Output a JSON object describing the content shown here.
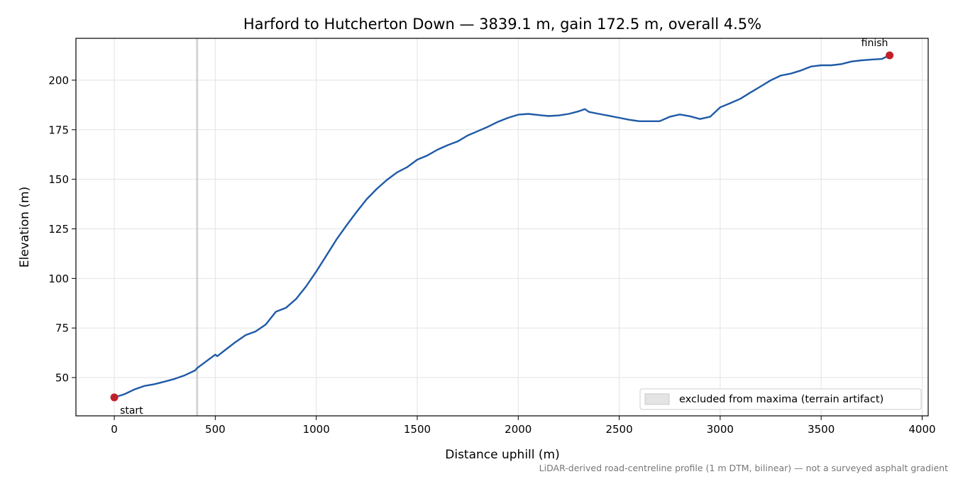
{
  "chart_data": {
    "type": "line",
    "title": "Harford to Hutcherton Down — 3839.1 m, gain 172.5 m, overall 4.5%",
    "xlabel": "Distance uphill (m)",
    "ylabel": "Elevation (m)",
    "xlim": [
      -190,
      4030
    ],
    "ylim": [
      30.7,
      221.1
    ],
    "xticks": [
      0,
      500,
      1000,
      1500,
      2000,
      2500,
      3000,
      3500,
      4000
    ],
    "yticks": [
      50,
      75,
      100,
      125,
      150,
      175,
      200
    ],
    "grid": true,
    "series": [
      {
        "color": "#1f5aa6",
        "x": [
          0,
          50,
          100,
          150,
          200,
          250,
          300,
          350,
          400,
          410,
          450,
          500,
          510,
          550,
          600,
          650,
          700,
          750,
          800,
          850,
          900,
          950,
          1000,
          1050,
          1100,
          1150,
          1200,
          1250,
          1300,
          1350,
          1400,
          1450,
          1500,
          1550,
          1600,
          1650,
          1700,
          1750,
          1800,
          1850,
          1900,
          1950,
          2000,
          2050,
          2100,
          2150,
          2200,
          2250,
          2300,
          2330,
          2350,
          2400,
          2450,
          2500,
          2550,
          2600,
          2650,
          2700,
          2750,
          2800,
          2850,
          2900,
          2950,
          3000,
          3050,
          3100,
          3150,
          3200,
          3250,
          3300,
          3350,
          3400,
          3450,
          3500,
          3550,
          3600,
          3650,
          3700,
          3750,
          3800,
          3839
        ],
        "y": [
          40.0,
          41.6,
          44.0,
          45.8,
          46.7,
          48.0,
          49.4,
          51.2,
          53.6,
          54.8,
          57.8,
          61.6,
          60.8,
          64.0,
          67.9,
          71.4,
          73.3,
          76.8,
          83.2,
          85.2,
          89.6,
          96.0,
          103.5,
          111.5,
          119.6,
          126.8,
          133.6,
          140.0,
          145.2,
          149.7,
          153.5,
          156.1,
          159.9,
          162.0,
          164.9,
          167.2,
          169.1,
          172.1,
          174.3,
          176.5,
          179.0,
          181.0,
          182.6,
          183.0,
          182.4,
          181.9,
          182.2,
          183.0,
          184.3,
          185.4,
          184.0,
          183.0,
          182.0,
          181.0,
          180.0,
          179.3,
          179.3,
          179.3,
          181.5,
          182.7,
          181.8,
          180.4,
          181.5,
          186.3,
          188.4,
          190.6,
          193.8,
          196.8,
          199.9,
          202.3,
          203.3,
          204.9,
          206.9,
          207.5,
          207.5,
          208.1,
          209.4,
          210.0,
          210.4,
          210.7,
          212.5
        ]
      }
    ],
    "markers": [
      {
        "x": 0,
        "y": 40.0,
        "label": "start",
        "color": "#c0202a"
      },
      {
        "x": 3839,
        "y": 212.5,
        "label": "finish",
        "color": "#c0202a"
      }
    ],
    "excluded_region": {
      "x": [
        405,
        415
      ],
      "color": "#c8c8c8"
    },
    "legend": {
      "position": "lower-right",
      "entries": [
        "excluded from maxima (terrain artifact)"
      ]
    },
    "footnote": "LiDAR-derived road-centreline profile (1 m DTM, bilinear) — not a surveyed asphalt gradient"
  }
}
